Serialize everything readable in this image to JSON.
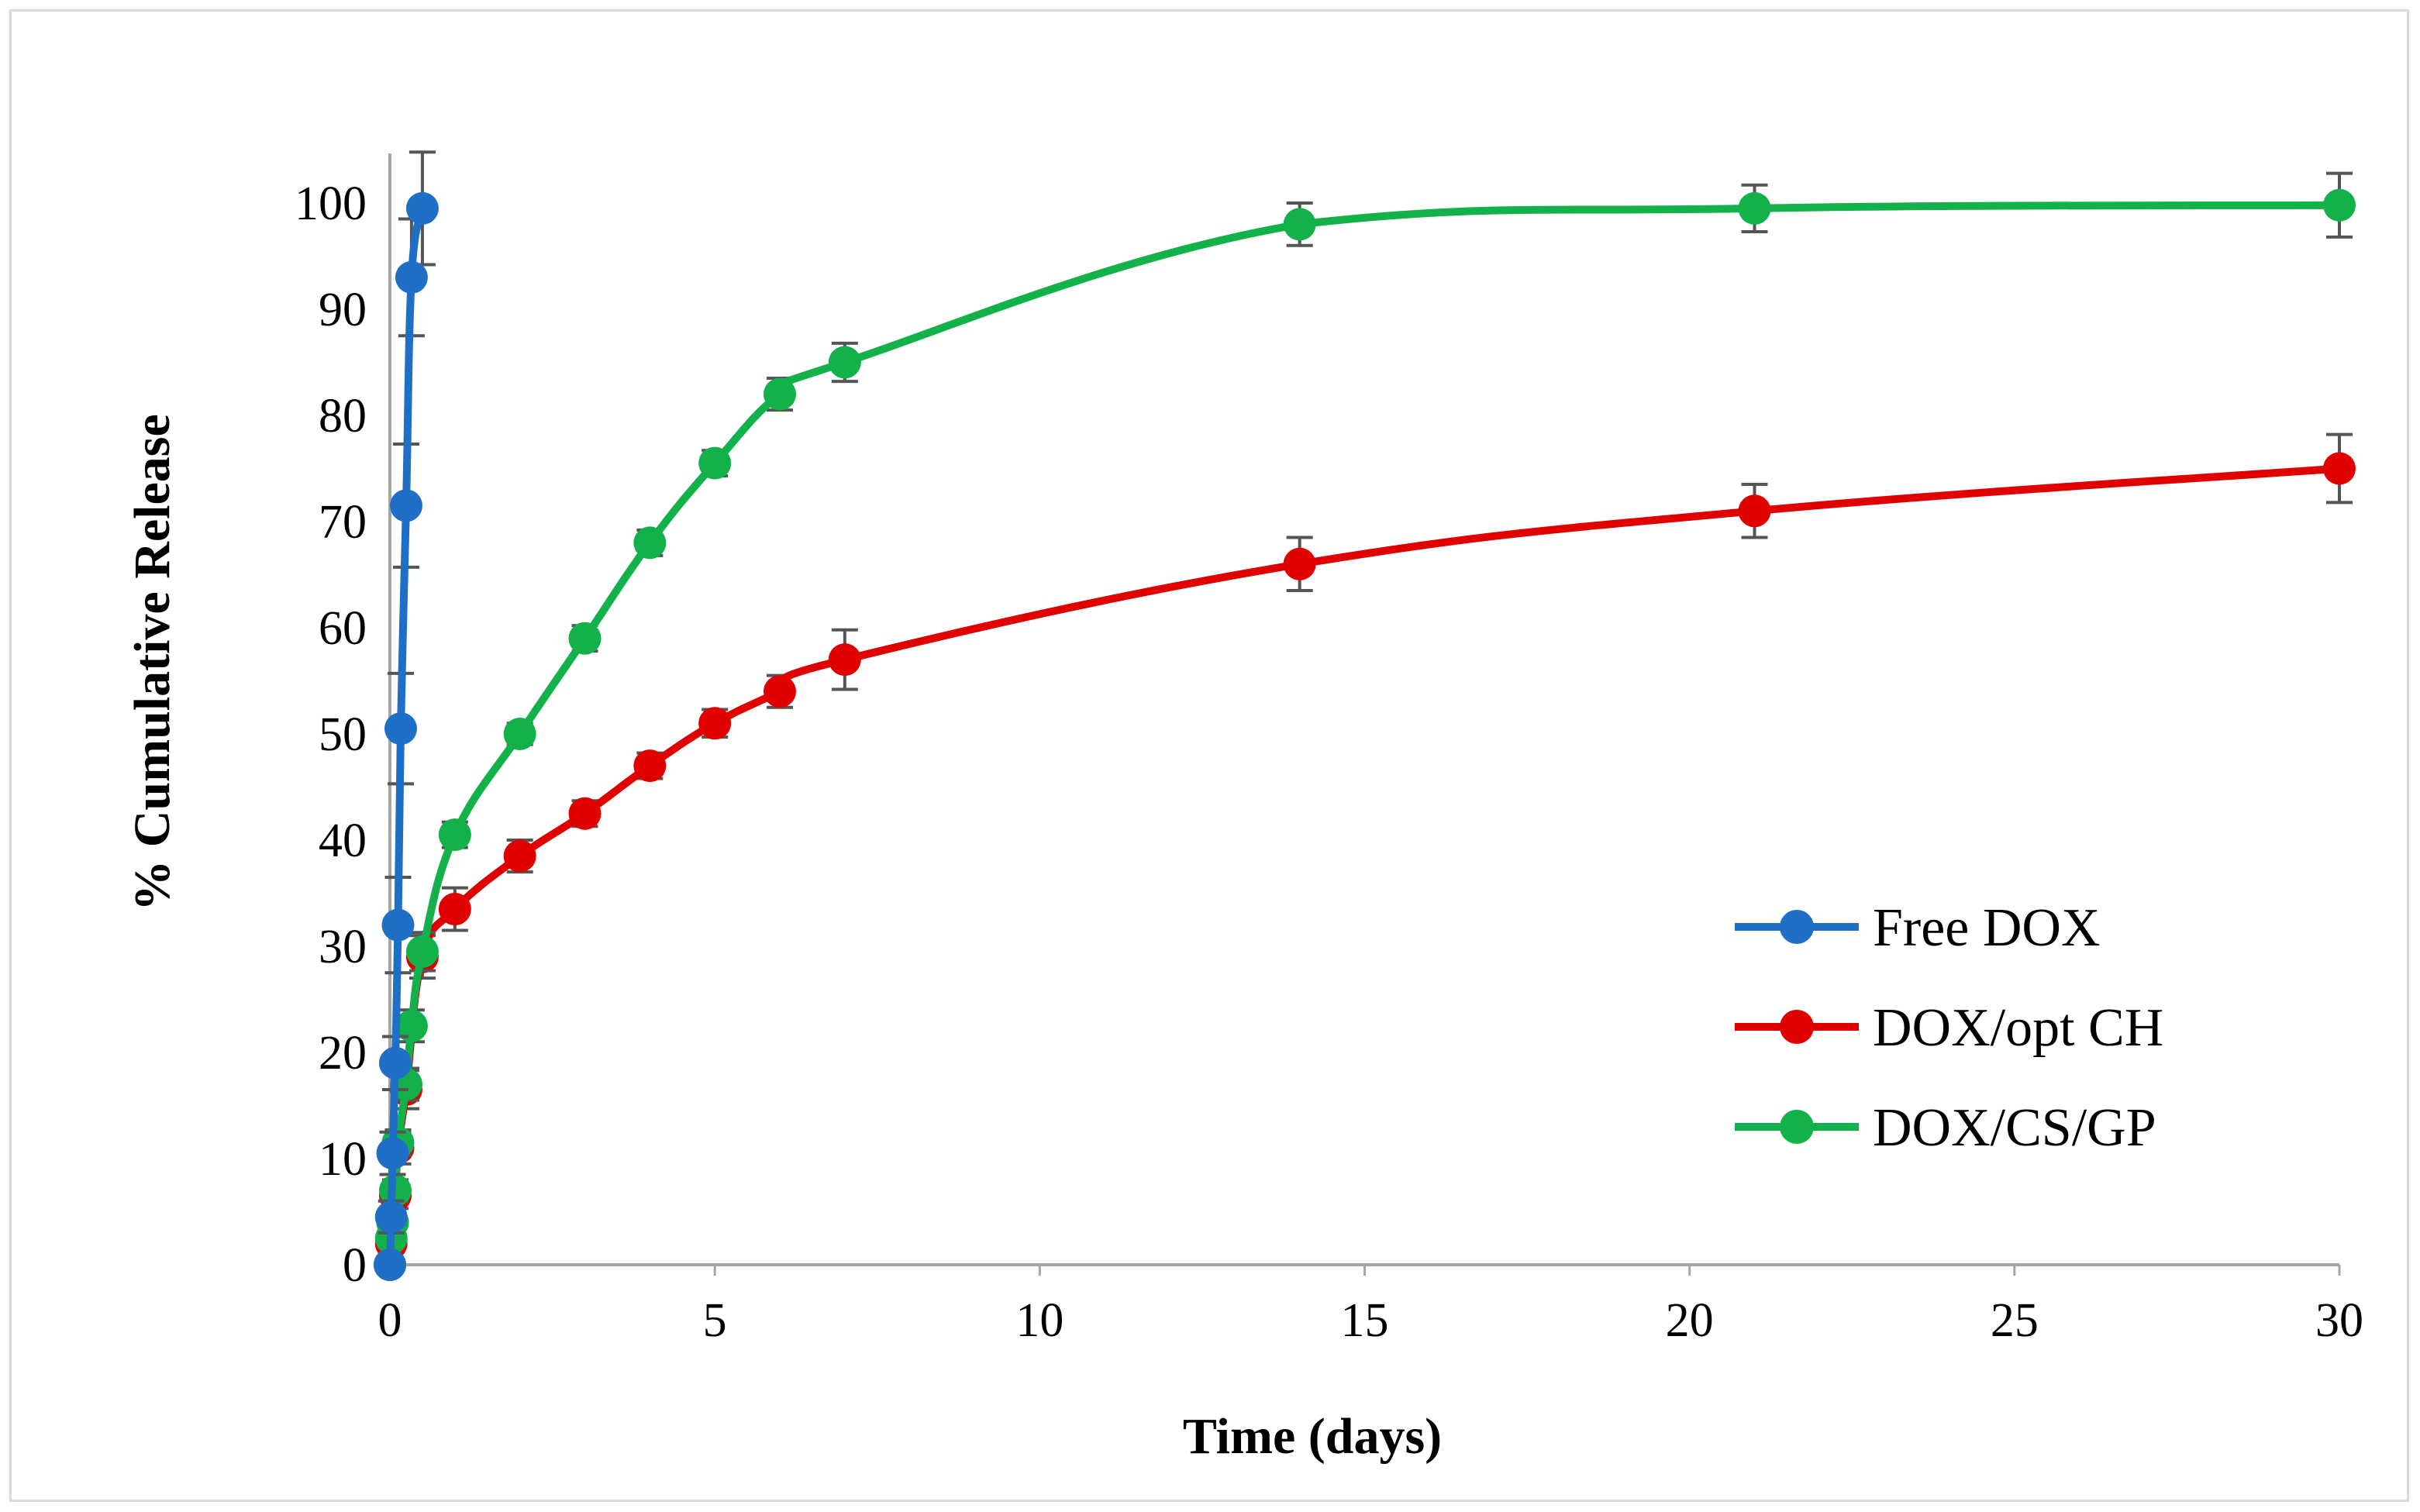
{
  "chart_data": {
    "type": "line",
    "title": "",
    "xlabel": "Time (days)",
    "ylabel": "% Cumulative Release",
    "xlim": [
      0,
      30
    ],
    "ylim": [
      0,
      105
    ],
    "xticks": [
      0,
      5,
      10,
      15,
      20,
      25,
      30
    ],
    "yticks": [
      0,
      10,
      20,
      30,
      40,
      50,
      60,
      70,
      80,
      90,
      100
    ],
    "grid": false,
    "legend_position": "right",
    "series": [
      {
        "name": "Free DOX",
        "color": "#1f6fc6",
        "x": [
          0,
          0.021,
          0.042,
          0.083,
          0.125,
          0.167,
          0.25,
          0.333,
          0.5
        ],
        "y": [
          0,
          4.5,
          10.5,
          19,
          32,
          50.5,
          71.5,
          93,
          99.5
        ],
        "err": [
          0,
          1.5,
          2,
          2.5,
          4.5,
          5.2,
          5.8,
          5.5,
          5.3
        ]
      },
      {
        "name": "DOX/opt CH",
        "color": "#e00000",
        "x": [
          0,
          0.021,
          0.042,
          0.083,
          0.125,
          0.25,
          0.5,
          1,
          2,
          3,
          4,
          5,
          6,
          7,
          14,
          21,
          30
        ],
        "y": [
          0,
          2,
          4,
          6.5,
          11,
          16.5,
          29,
          33.5,
          38.5,
          42.5,
          47,
          51,
          54,
          57,
          66,
          71,
          75
        ],
        "err": [
          0,
          0.8,
          1,
          1.2,
          1.5,
          1.8,
          2,
          2,
          1.5,
          1.2,
          1.2,
          1.3,
          1.5,
          2.8,
          2.5,
          2.5,
          3.2
        ]
      },
      {
        "name": "DOX/CS/GP",
        "color": "#12b14a",
        "x": [
          0,
          0.021,
          0.042,
          0.083,
          0.125,
          0.25,
          0.333,
          0.5,
          1,
          2,
          3,
          4,
          5,
          6,
          7,
          14,
          21,
          30
        ],
        "y": [
          0,
          2.5,
          4,
          7,
          11.5,
          17,
          22.5,
          29.5,
          40.5,
          50,
          59,
          68,
          75.5,
          82,
          85,
          98,
          99.5,
          99.8
        ],
        "err": [
          0,
          0.5,
          0.8,
          1,
          1.2,
          1.5,
          1.5,
          1.8,
          1.2,
          1,
          1.2,
          1.2,
          1.2,
          1.5,
          1.8,
          2,
          2.2,
          3
        ]
      }
    ]
  }
}
